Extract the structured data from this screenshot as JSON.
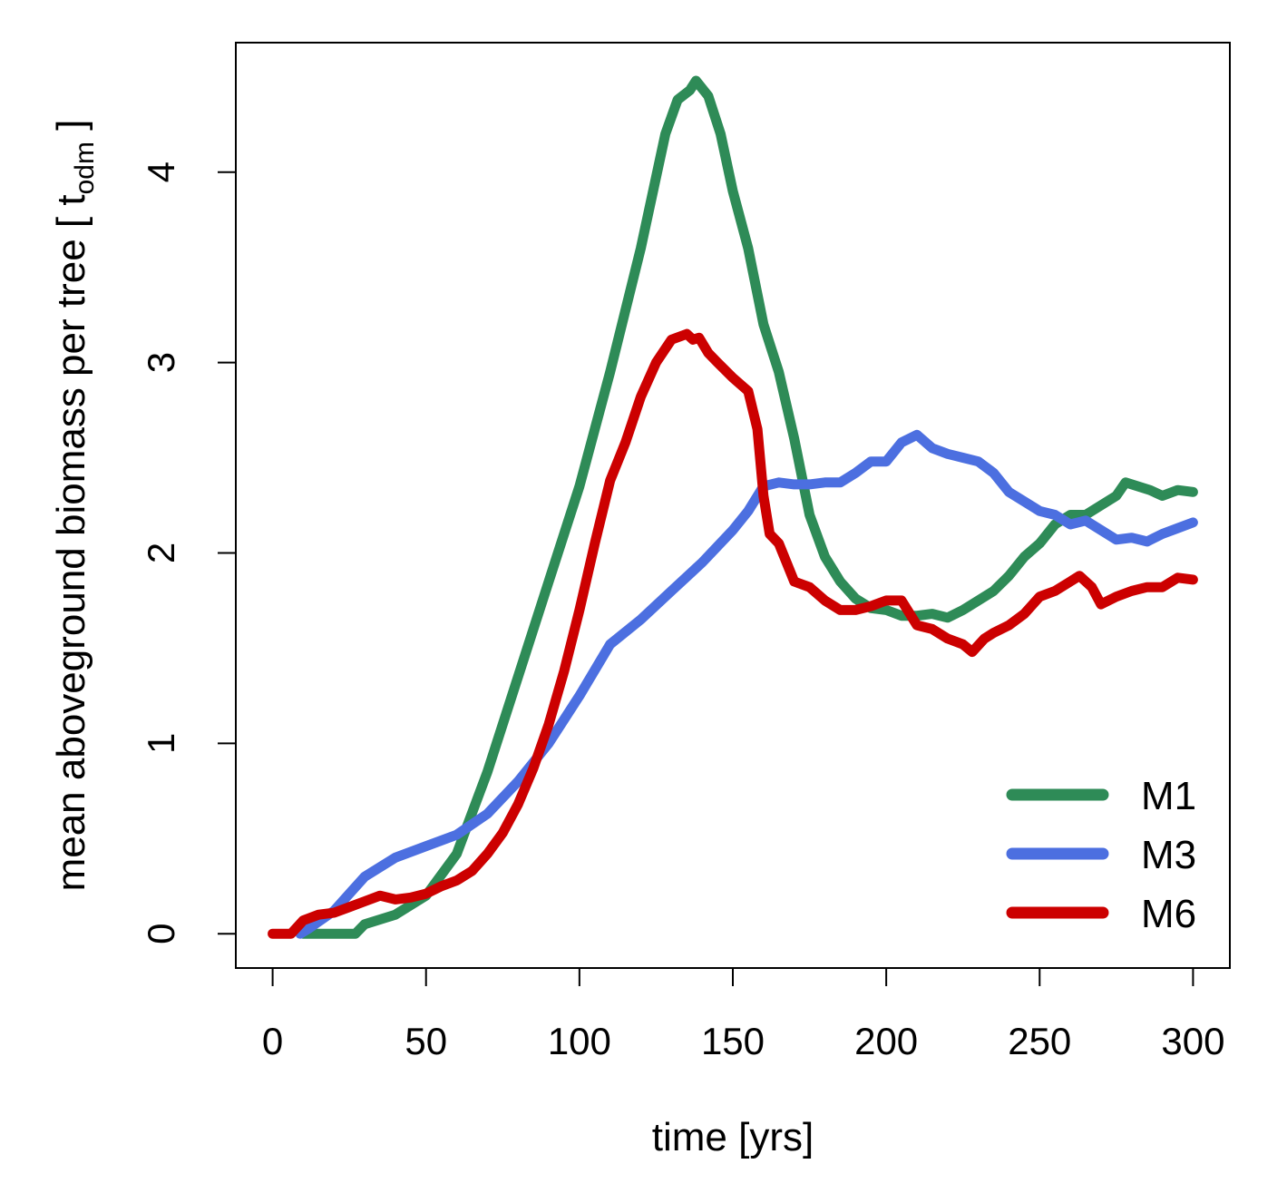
{
  "chart_data": {
    "type": "line",
    "title": "",
    "xlabel": "time [yrs]",
    "ylabel_main": "mean aboveground biomass per tree [ t",
    "ylabel_sub": "odm",
    "ylabel_end": " ]",
    "xlim": [
      -12,
      312
    ],
    "ylim": [
      -0.18,
      4.68
    ],
    "xticks": [
      0,
      50,
      100,
      150,
      200,
      250,
      300
    ],
    "xtick_labels": [
      "0",
      "50",
      "100",
      "150",
      "200",
      "250",
      "300"
    ],
    "yticks": [
      0,
      1,
      2,
      3,
      4
    ],
    "ytick_labels": [
      "0",
      "1",
      "2",
      "3",
      "4"
    ],
    "legend": {
      "position": "bottom-right"
    },
    "series": [
      {
        "name": "M1",
        "color": "#2e8b57",
        "x": [
          10,
          20,
          27,
          30,
          40,
          50,
          60,
          70,
          80,
          90,
          100,
          110,
          120,
          128,
          132,
          136,
          138,
          142,
          146,
          150,
          155,
          160,
          165,
          170,
          175,
          180,
          185,
          190,
          195,
          200,
          205,
          210,
          215,
          220,
          225,
          230,
          235,
          240,
          245,
          250,
          255,
          260,
          265,
          270,
          275,
          278,
          282,
          286,
          290,
          295,
          300
        ],
        "y": [
          0,
          0,
          0,
          0.05,
          0.1,
          0.2,
          0.42,
          0.85,
          1.35,
          1.85,
          2.35,
          2.95,
          3.6,
          4.2,
          4.38,
          4.43,
          4.48,
          4.4,
          4.2,
          3.9,
          3.6,
          3.2,
          2.95,
          2.6,
          2.2,
          1.98,
          1.85,
          1.76,
          1.71,
          1.7,
          1.67,
          1.67,
          1.68,
          1.66,
          1.7,
          1.75,
          1.8,
          1.88,
          1.98,
          2.05,
          2.15,
          2.2,
          2.2,
          2.25,
          2.3,
          2.37,
          2.35,
          2.33,
          2.3,
          2.33,
          2.32
        ]
      },
      {
        "name": "M3",
        "color": "#4c6fe0",
        "x": [
          9,
          12,
          20,
          30,
          40,
          50,
          60,
          70,
          80,
          90,
          100,
          110,
          120,
          130,
          140,
          150,
          155,
          160,
          165,
          170,
          175,
          180,
          185,
          190,
          195,
          200,
          205,
          210,
          215,
          220,
          225,
          230,
          235,
          240,
          245,
          250,
          255,
          260,
          265,
          270,
          275,
          280,
          285,
          290,
          295,
          300
        ],
        "y": [
          0,
          0.03,
          0.12,
          0.3,
          0.4,
          0.46,
          0.52,
          0.63,
          0.8,
          1.0,
          1.25,
          1.52,
          1.65,
          1.8,
          1.95,
          2.12,
          2.22,
          2.35,
          2.37,
          2.36,
          2.36,
          2.37,
          2.37,
          2.42,
          2.48,
          2.48,
          2.58,
          2.62,
          2.55,
          2.52,
          2.5,
          2.48,
          2.42,
          2.32,
          2.27,
          2.22,
          2.2,
          2.15,
          2.17,
          2.12,
          2.07,
          2.08,
          2.06,
          2.1,
          2.13,
          2.16
        ]
      },
      {
        "name": "M6",
        "color": "#cc0000",
        "x": [
          0,
          6,
          10,
          15,
          20,
          25,
          30,
          35,
          40,
          45,
          50,
          55,
          60,
          65,
          70,
          75,
          80,
          85,
          90,
          95,
          100,
          105,
          110,
          115,
          120,
          125,
          130,
          135,
          137,
          139,
          142,
          145,
          150,
          155,
          158,
          160,
          162,
          165,
          170,
          175,
          180,
          185,
          190,
          195,
          200,
          205,
          210,
          215,
          220,
          225,
          228,
          232,
          235,
          240,
          245,
          250,
          255,
          260,
          263,
          267,
          270,
          275,
          280,
          285,
          290,
          295,
          300
        ],
        "y": [
          0,
          0,
          0.07,
          0.1,
          0.11,
          0.14,
          0.17,
          0.2,
          0.18,
          0.19,
          0.21,
          0.25,
          0.28,
          0.33,
          0.42,
          0.53,
          0.68,
          0.87,
          1.1,
          1.38,
          1.7,
          2.05,
          2.38,
          2.58,
          2.82,
          3.0,
          3.12,
          3.15,
          3.12,
          3.13,
          3.05,
          3.0,
          2.92,
          2.85,
          2.65,
          2.3,
          2.1,
          2.05,
          1.85,
          1.82,
          1.75,
          1.7,
          1.7,
          1.72,
          1.75,
          1.75,
          1.62,
          1.6,
          1.55,
          1.52,
          1.48,
          1.55,
          1.58,
          1.62,
          1.68,
          1.77,
          1.8,
          1.85,
          1.88,
          1.82,
          1.73,
          1.77,
          1.8,
          1.82,
          1.82,
          1.87,
          1.86
        ]
      }
    ]
  }
}
